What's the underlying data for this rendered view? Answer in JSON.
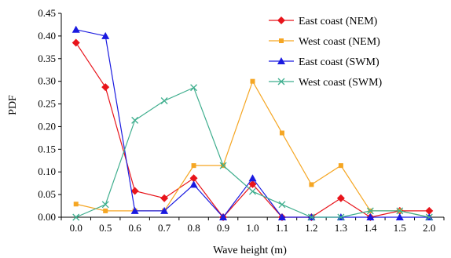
{
  "chart_data": {
    "type": "line",
    "xlabel": "Wave height (m)",
    "ylabel": "PDF",
    "categories": [
      "0.0",
      "0.5",
      "0.6",
      "0.7",
      "0.8",
      "0.9",
      "1.0",
      "1.1",
      "1.2",
      "1.3",
      "1.4",
      "1.5",
      "2.0"
    ],
    "ylim": [
      0,
      0.45
    ],
    "yticks": [
      "0.00",
      "0.05",
      "0.10",
      "0.15",
      "0.20",
      "0.25",
      "0.30",
      "0.35",
      "0.40",
      "0.45"
    ],
    "legend_position": "top-right",
    "grid": false,
    "series": [
      {
        "name": "East coast (NEM)",
        "color": "#e8141b",
        "marker": "diamond",
        "values": [
          0.385,
          0.287,
          0.058,
          0.042,
          0.086,
          0.0,
          0.073,
          0.0,
          0.0,
          0.042,
          0.0,
          0.014,
          0.014
        ]
      },
      {
        "name": "West coast (NEM)",
        "color": "#f5a623",
        "marker": "square",
        "values": [
          0.029,
          0.014,
          0.014,
          0.014,
          0.114,
          0.114,
          0.3,
          0.186,
          0.072,
          0.114,
          0.014,
          0.014,
          0.0
        ]
      },
      {
        "name": "East coast (SWM)",
        "color": "#1a1ae0",
        "marker": "triangle",
        "values": [
          0.414,
          0.4,
          0.014,
          0.014,
          0.072,
          0.0,
          0.086,
          0.0,
          0.0,
          0.0,
          0.0,
          0.0,
          0.0
        ]
      },
      {
        "name": "West coast (SWM)",
        "color": "#3fae8e",
        "marker": "x",
        "values": [
          0.0,
          0.028,
          0.214,
          0.257,
          0.286,
          0.114,
          0.057,
          0.028,
          0.0,
          0.0,
          0.014,
          0.014,
          0.0
        ]
      }
    ]
  }
}
